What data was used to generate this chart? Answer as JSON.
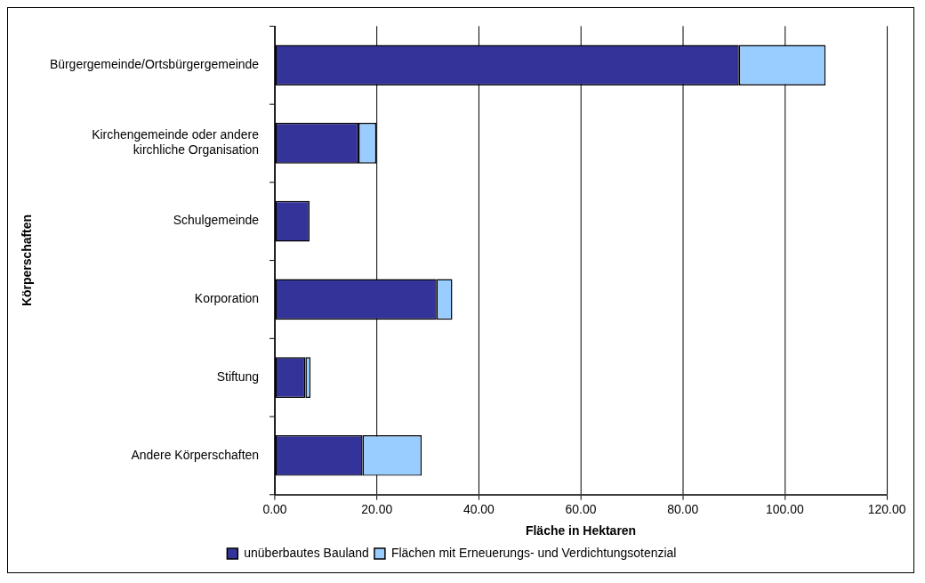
{
  "chart_data": {
    "type": "bar",
    "orientation": "horizontal",
    "stacked": true,
    "xlabel": "Fläche in Hektaren",
    "ylabel": "Körperschaften",
    "categories": [
      "Bürgergemeinde/Ortsbürgergemeinde",
      "Kirchengemeinde oder andere kirchliche Organisation",
      "Schulgemeinde",
      "Korporation",
      "Stiftung",
      "Andere Körperschaften"
    ],
    "series": [
      {
        "name": "unüberbautes Bauland",
        "color": "#333399",
        "values": [
          91,
          16.4,
          6.8,
          31.7,
          6.0,
          17.2
        ]
      },
      {
        "name": "Flächen mit Erneuerungs- und Verdichtungsotenzial",
        "color": "#99ccff",
        "values": [
          17,
          3.5,
          null,
          3.1,
          1.0,
          11.6
        ]
      }
    ],
    "xlim": [
      0,
      120
    ],
    "xticks": [
      {
        "value": 0,
        "label": "0.00"
      },
      {
        "value": 20,
        "label": "20.00"
      },
      {
        "value": 40,
        "label": "40.00"
      },
      {
        "value": 60,
        "label": "60.00"
      },
      {
        "value": 80,
        "label": "80.00"
      },
      {
        "value": 100,
        "label": "100.00"
      },
      {
        "value": 120,
        "label": "120.00"
      }
    ],
    "grid": "x",
    "legend": "bottom"
  }
}
